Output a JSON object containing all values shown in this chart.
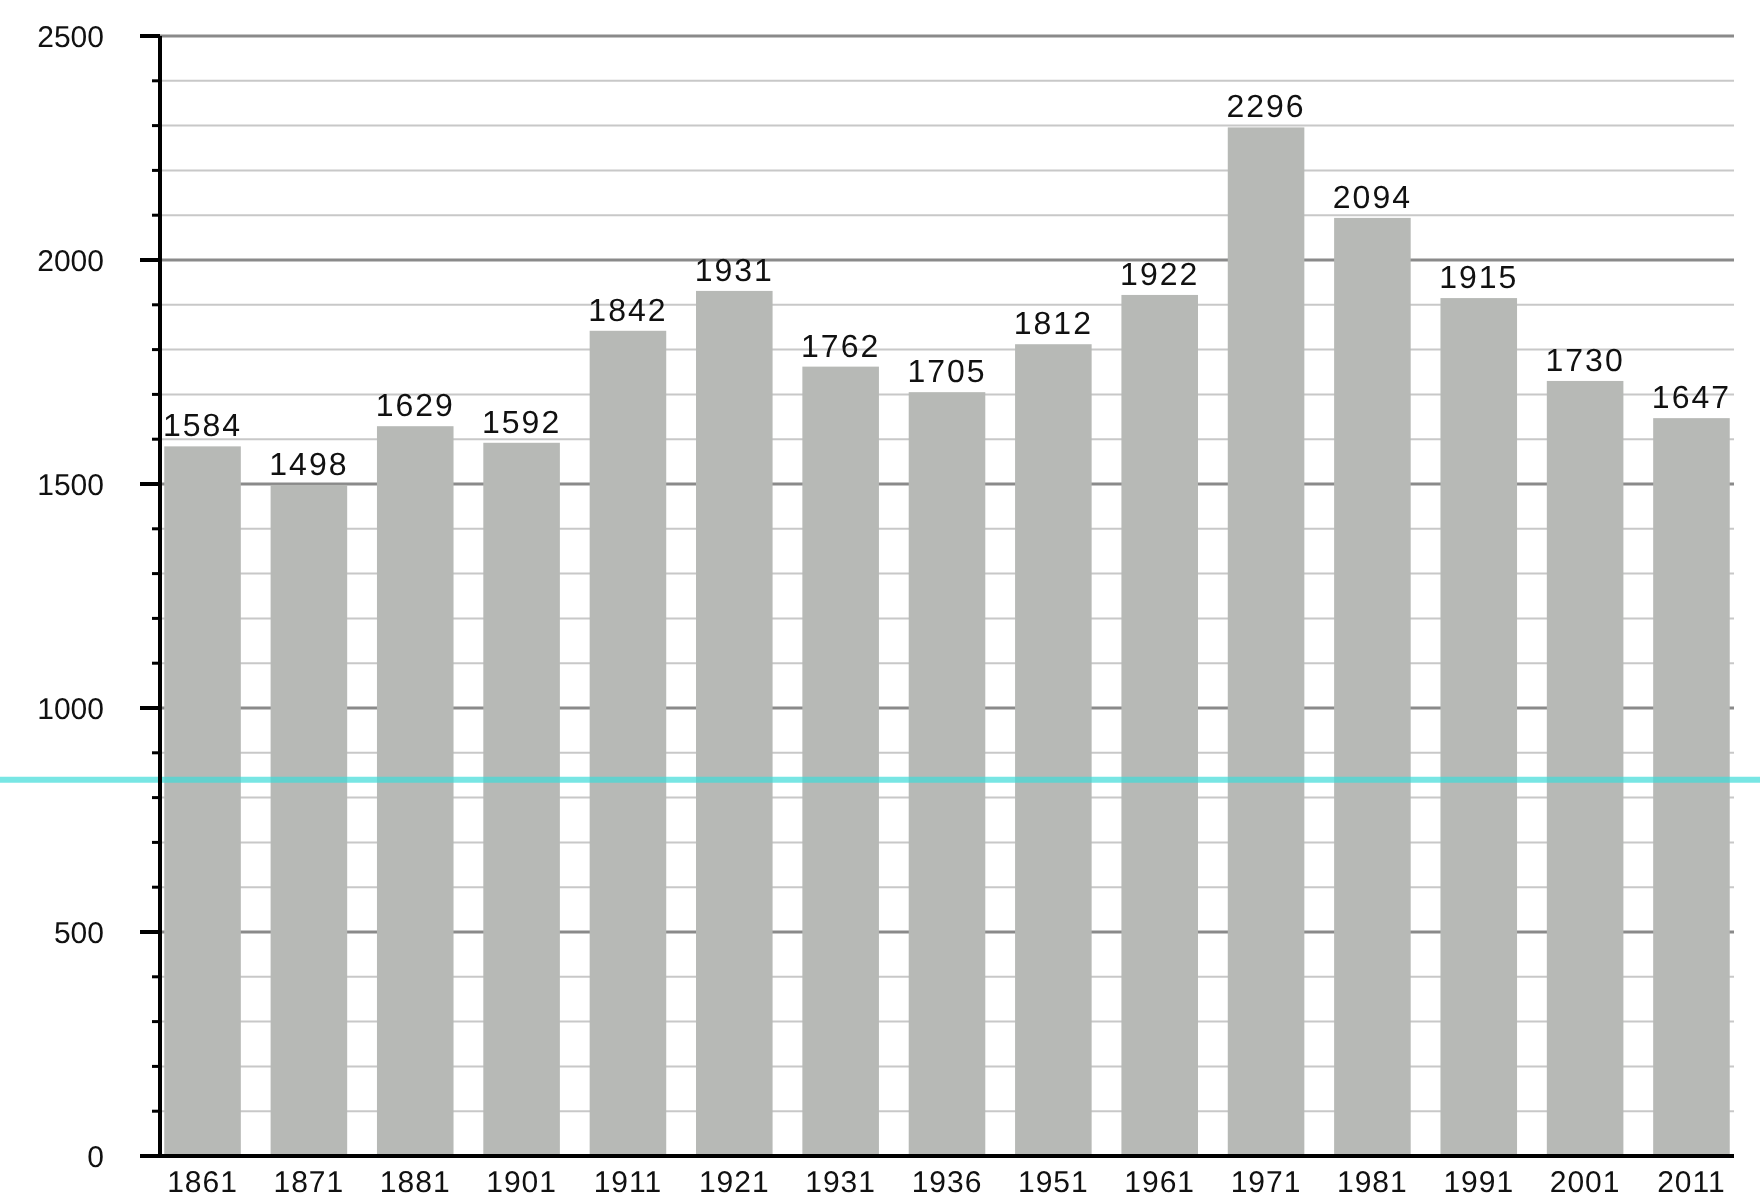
{
  "chart_data": {
    "type": "bar",
    "categories": [
      "1861",
      "1871",
      "1881",
      "1901",
      "1911",
      "1921",
      "1931",
      "1936",
      "1951",
      "1961",
      "1971",
      "1981",
      "1991",
      "2001",
      "2011"
    ],
    "values": [
      1584,
      1498,
      1629,
      1592,
      1842,
      1931,
      1762,
      1705,
      1812,
      1922,
      2296,
      2094,
      1915,
      1730,
      1647
    ],
    "color": "#b7b9b6",
    "ylim": [
      0,
      2500
    ],
    "yticks": [
      0,
      {
        "value": 100,
        "label": null
      },
      {
        "value": 200,
        "label": null
      },
      {
        "value": 300,
        "label": null
      },
      {
        "value": 400,
        "label": null
      },
      500,
      {
        "value": 600,
        "label": null
      },
      {
        "value": 700,
        "label": null
      },
      {
        "value": 800,
        "label": null
      },
      {
        "value": 900,
        "label": null
      },
      1000,
      {
        "value": 1100,
        "label": null
      },
      {
        "value": 1200,
        "label": null
      },
      {
        "value": 1300,
        "label": null
      },
      {
        "value": 1400,
        "label": null
      },
      1500,
      {
        "value": 1600,
        "label": null
      },
      {
        "value": 1700,
        "label": null
      },
      {
        "value": 1800,
        "label": null
      },
      {
        "value": 1900,
        "label": null
      },
      2000,
      {
        "value": 2100,
        "label": null
      },
      {
        "value": 2200,
        "label": null
      },
      {
        "value": 2300,
        "label": null
      },
      {
        "value": 2400,
        "label": null
      },
      2500
    ],
    "grid": "y",
    "data_labels": true,
    "ref_lines": [
      {
        "axis": "y",
        "value": 840,
        "color": "#3fdcd8"
      }
    ]
  }
}
